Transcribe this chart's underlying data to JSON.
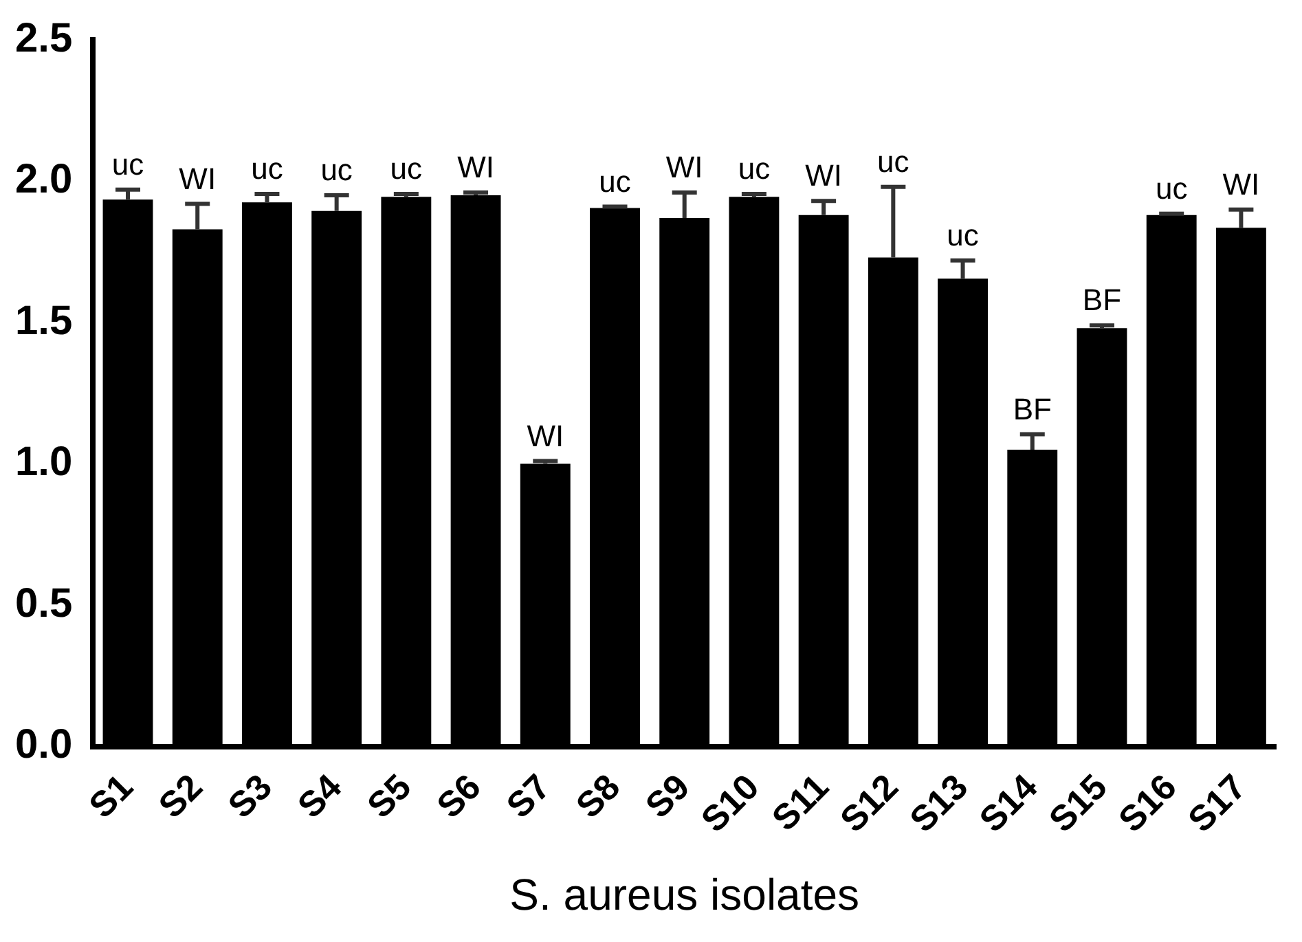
{
  "chart_data": {
    "type": "bar",
    "xlabel": "S. aureus isolates",
    "categories": [
      "S1",
      "S2",
      "S3",
      "S4",
      "S5",
      "S6",
      "S7",
      "S8",
      "S9",
      "S10",
      "S11",
      "S12",
      "S13",
      "S14",
      "S15",
      "S16",
      "S17"
    ],
    "values": [
      1.935,
      1.83,
      1.925,
      1.895,
      1.945,
      1.95,
      1.0,
      1.905,
      1.87,
      1.945,
      1.88,
      1.73,
      1.655,
      1.05,
      1.48,
      1.88,
      1.835
    ],
    "errors": [
      [
        1.935,
        1.97
      ],
      [
        1.83,
        1.92
      ],
      [
        1.925,
        1.955
      ],
      [
        1.895,
        1.95
      ],
      [
        1.945,
        1.955
      ],
      [
        1.95,
        1.96
      ],
      [
        1.0,
        1.01
      ],
      [
        1.905,
        1.91
      ],
      [
        1.87,
        1.96
      ],
      [
        1.945,
        1.955
      ],
      [
        1.88,
        1.93
      ],
      [
        1.73,
        1.98
      ],
      [
        1.655,
        1.72
      ],
      [
        1.05,
        1.105
      ],
      [
        1.48,
        1.49
      ],
      [
        1.88,
        1.885
      ],
      [
        1.835,
        1.9
      ]
    ],
    "value_labels": [
      "uc",
      "WI",
      "uc",
      "uc",
      "uc",
      "WI",
      "WI",
      "uc",
      "WI",
      "uc",
      "WI",
      "uc",
      "uc",
      "BF",
      "BF",
      "uc",
      "WI"
    ],
    "color": "#000000",
    "ylim": [
      0,
      2.5
    ],
    "yticks": [
      {
        "value": 0,
        "label": "0.0"
      },
      {
        "value": 0.5,
        "label": "0.5"
      },
      {
        "value": 1,
        "label": "1.0"
      },
      {
        "value": 1.5,
        "label": "1.5"
      },
      {
        "value": 2,
        "label": "2.0"
      },
      {
        "value": 2.5,
        "label": "2.5"
      }
    ],
    "grid": false,
    "legend": false
  }
}
